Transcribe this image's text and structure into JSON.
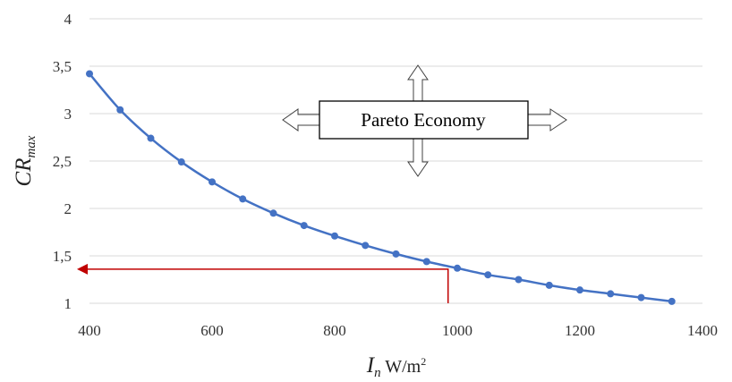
{
  "chart_data": {
    "type": "line",
    "title": "",
    "xlabel": {
      "symbol": "I",
      "subscript": "n",
      "unit_base": " W/m",
      "unit_exp": "2"
    },
    "ylabel": {
      "symbol": "CR",
      "subscript": "max"
    },
    "xlim": [
      400,
      1400
    ],
    "ylim": [
      1,
      4
    ],
    "xticks": [
      400,
      600,
      800,
      1000,
      1200,
      1400
    ],
    "yticks": [
      1,
      1.5,
      2,
      2.5,
      3,
      3.5,
      4
    ],
    "xtick_labels": [
      "400",
      "600",
      "800",
      "1000",
      "1200",
      "1400"
    ],
    "ytick_labels": [
      "1",
      "1,5",
      "2",
      "2,5",
      "3",
      "3,5",
      "4"
    ],
    "grid": "horizontal",
    "series": [
      {
        "color": "#4472C4",
        "marker": "circle",
        "x": [
          400,
          450,
          500,
          550,
          600,
          650,
          700,
          750,
          800,
          850,
          900,
          950,
          1000,
          1050,
          1100,
          1150,
          1200,
          1250,
          1300,
          1350
        ],
        "y": [
          3.42,
          3.04,
          2.74,
          2.49,
          2.28,
          2.1,
          1.95,
          1.82,
          1.71,
          1.61,
          1.52,
          1.44,
          1.37,
          1.3,
          1.25,
          1.19,
          1.14,
          1.1,
          1.06,
          1.02
        ]
      }
    ],
    "annotation_box": {
      "text": "Pareto Economy"
    },
    "reference_arrow": {
      "color": "#C00000",
      "x": 985,
      "y": 1.36
    }
  }
}
